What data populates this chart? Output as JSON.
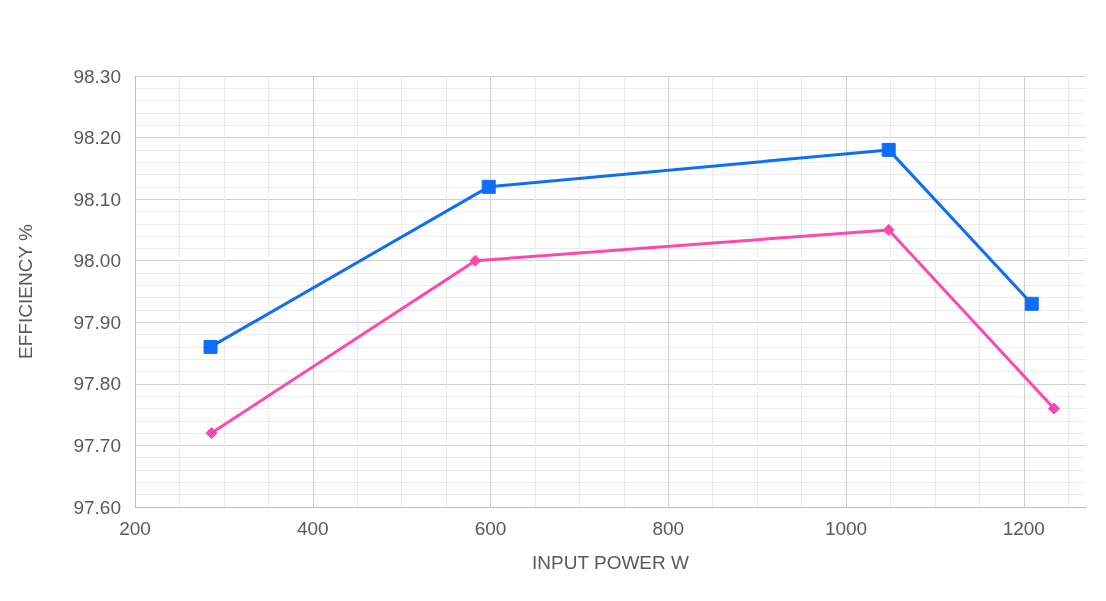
{
  "chart_data": {
    "type": "line",
    "xlabel": "INPUT POWER W",
    "ylabel": "EFFICIENCY %",
    "series": [
      {
        "color": "#0f6ef5",
        "marker": "square",
        "x": [
          285,
          598,
          1048,
          1209
        ],
        "values": [
          97.86,
          98.12,
          98.18,
          97.93
        ]
      },
      {
        "color": "#ff47b0",
        "marker": "diamond",
        "x": [
          286,
          583,
          1048,
          1234
        ],
        "values": [
          97.72,
          98.0,
          98.05,
          97.76
        ]
      }
    ],
    "xlim": [
      200,
      1270
    ],
    "xticks": [
      200,
      400,
      600,
      800,
      1000,
      1200
    ],
    "ylim": [
      97.6,
      98.3
    ],
    "yticks": [
      {
        "value": 97.6,
        "label": "97.60"
      },
      {
        "value": 97.7,
        "label": "97.70"
      },
      {
        "value": 97.8,
        "label": "97.80"
      },
      {
        "value": 97.9,
        "label": "97.90"
      },
      {
        "value": 98.0,
        "label": "98.00"
      },
      {
        "value": 98.1,
        "label": "98.10"
      },
      {
        "value": 98.2,
        "label": "98.20"
      },
      {
        "value": 98.3,
        "label": "98.30"
      }
    ],
    "grid": true,
    "line_style": "solid"
  }
}
